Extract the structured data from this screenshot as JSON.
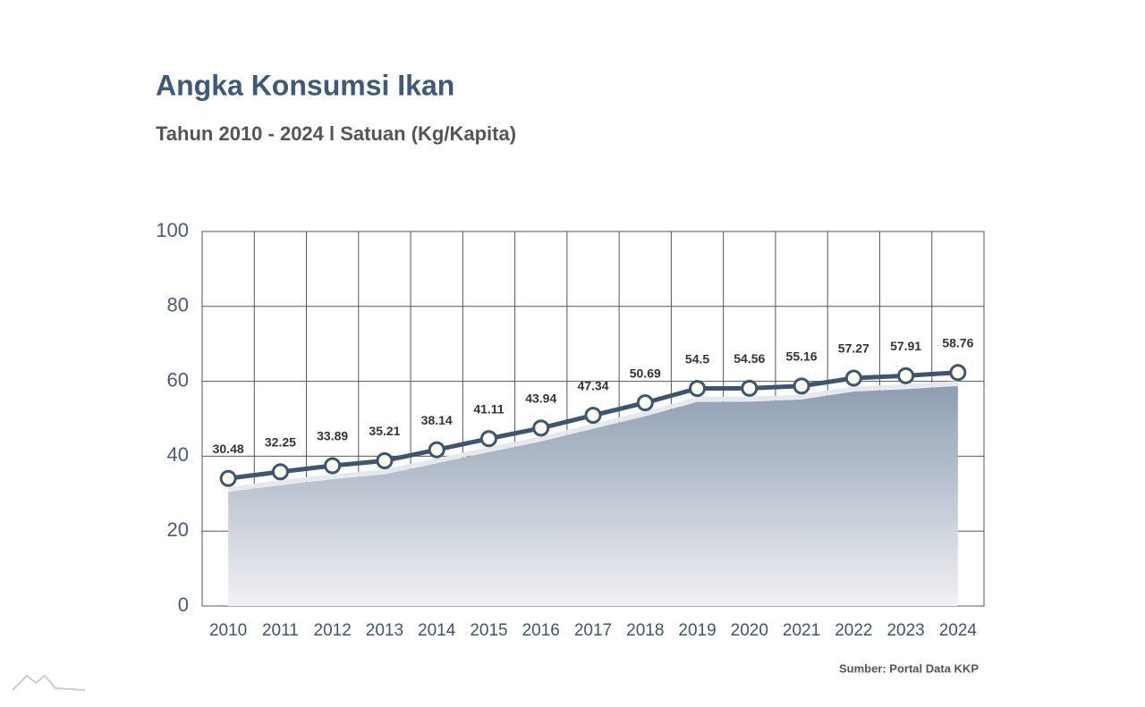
{
  "chart_data": {
    "type": "area",
    "title": "Angka Konsumsi Ikan",
    "subtitle": "Tahun 2010 - 2024 l Satuan (Kg/Kapita)",
    "categories": [
      "2010",
      "2011",
      "2012",
      "2013",
      "2014",
      "2015",
      "2016",
      "2017",
      "2018",
      "2019",
      "2020",
      "2021",
      "2022",
      "2023",
      "2024"
    ],
    "values": [
      30.48,
      32.25,
      33.89,
      35.21,
      38.14,
      41.11,
      43.94,
      47.34,
      50.69,
      54.5,
      54.56,
      55.16,
      57.27,
      57.91,
      58.76
    ],
    "color": "#3d5570",
    "ylim": [
      0,
      100
    ],
    "yticks": [
      0,
      20,
      40,
      60,
      80,
      100
    ],
    "grid": true,
    "source": "Sumber: Portal Data KKP"
  }
}
